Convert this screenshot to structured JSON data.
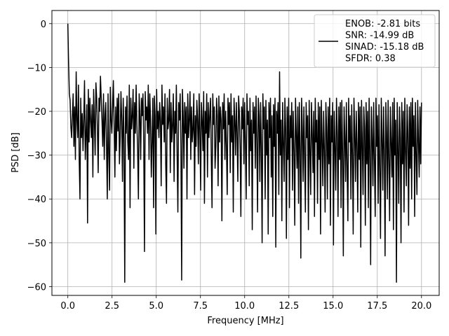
{
  "chart_data": {
    "type": "line",
    "title": "",
    "xlabel": "Frequency [MHz]",
    "ylabel": "PSD [dB]",
    "xlim": [
      -0.9,
      21.0
    ],
    "ylim": [
      -62.0,
      3.0
    ],
    "xticks": [
      0.0,
      2.5,
      5.0,
      7.5,
      10.0,
      12.5,
      15.0,
      17.5,
      20.0
    ],
    "xtick_labels": [
      "0.0",
      "2.5",
      "5.0",
      "7.5",
      "10.0",
      "12.5",
      "15.0",
      "17.5",
      "20.0"
    ],
    "yticks": [
      0,
      -10,
      -20,
      -30,
      -40,
      -50,
      -60
    ],
    "ytick_labels": [
      "0",
      "−10",
      "−20",
      "−30",
      "−40",
      "−50",
      "−60"
    ],
    "grid": true,
    "legend_position": "top-right",
    "series": [
      {
        "name": "ENOB: -2.81 bits\nSNR: -14.99 dB\nSINAD: -15.18 dB\nSFDR: 0.38",
        "color": "#000000",
        "x_range": [
          0.0,
          20.0
        ],
        "values": [
          0.0,
          -9.0,
          -16.0,
          -17.5,
          -23.5,
          -26.0,
          -21.0,
          -16.0,
          -28.0,
          -19.0,
          -31.0,
          -11.0,
          -22.0,
          -26.0,
          -14.0,
          -31.0,
          -40.0,
          -17.0,
          -26.0,
          -20.5,
          -29.0,
          -22.0,
          -13.0,
          -31.0,
          -25.0,
          -18.5,
          -45.5,
          -15.0,
          -27.0,
          -17.0,
          -22.0,
          -26.0,
          -18.5,
          -35.0,
          -15.0,
          -22.0,
          -30.0,
          -13.5,
          -17.0,
          -24.0,
          -34.0,
          -17.0,
          -20.0,
          -12.0,
          -17.0,
          -22.0,
          -28.0,
          -16.0,
          -31.0,
          -21.0,
          -18.0,
          -28.0,
          -40.0,
          -16.0,
          -30.0,
          -38.0,
          -14.5,
          -22.0,
          -25.0,
          -19.0,
          -13.0,
          -23.0,
          -35.0,
          -19.0,
          -29.0,
          -17.0,
          -24.5,
          -16.0,
          -32.0,
          -26.0,
          -15.5,
          -22.0,
          -36.0,
          -17.0,
          -26.0,
          -59.0,
          -19.0,
          -25.0,
          -16.5,
          -27.0,
          -31.0,
          -14.0,
          -42.0,
          -17.0,
          -24.0,
          -21.0,
          -15.0,
          -33.0,
          -18.0,
          -25.0,
          -14.0,
          -23.0,
          -29.0,
          -40.0,
          -16.0,
          -21.0,
          -31.0,
          -17.0,
          -21.0,
          -16.0,
          -27.0,
          -52.0,
          -15.5,
          -22.0,
          -19.0,
          -25.0,
          -14.0,
          -31.0,
          -16.0,
          -22.0,
          -35.0,
          -27.0,
          -17.0,
          -42.0,
          -16.5,
          -21.0,
          -48.0,
          -15.0,
          -24.0,
          -20.0,
          -26.0,
          -18.0,
          -22.0,
          -37.0,
          -14.0,
          -23.0,
          -19.0,
          -27.0,
          -16.0,
          -32.0,
          -41.0,
          -17.0,
          -24.0,
          -22.0,
          -15.0,
          -34.0,
          -18.0,
          -27.0,
          -23.0,
          -16.0,
          -36.0,
          -20.0,
          -25.0,
          -14.0,
          -30.0,
          -43.0,
          -18.0,
          -22.0,
          -16.0,
          -28.0,
          -58.5,
          -15.0,
          -21.0,
          -33.0,
          -18.0,
          -25.0,
          -19.0,
          -40.0,
          -16.0,
          -26.0,
          -22.0,
          -15.5,
          -31.0,
          -19.0,
          -27.0,
          -24.0,
          -16.0,
          -39.0,
          -21.0,
          -28.0,
          -17.5,
          -22.0,
          -32.0,
          -16.0,
          -25.0,
          -38.0,
          -18.0,
          -22.0,
          -29.0,
          -15.5,
          -41.0,
          -20.0,
          -25.0,
          -16.0,
          -35.0,
          -18.0,
          -26.0,
          -21.0,
          -17.0,
          -30.0,
          -42.0,
          -16.0,
          -23.0,
          -19.0,
          -33.0,
          -28.0,
          -17.0,
          -21.0,
          -37.0,
          -16.5,
          -27.0,
          -19.0,
          -22.0,
          -45.0,
          -18.0,
          -24.0,
          -16.0,
          -31.0,
          -20.0,
          -28.0,
          -39.0,
          -17.0,
          -23.0,
          -18.0,
          -34.0,
          -16.0,
          -27.0,
          -21.0,
          -43.0,
          -17.0,
          -22.0,
          -30.0,
          -18.0,
          -25.0,
          -36.0,
          -16.5,
          -20.0,
          -28.0,
          -44.0,
          -19.0,
          -24.0,
          -17.0,
          -32.0,
          -18.0,
          -27.0,
          -40.0,
          -16.0,
          -23.0,
          -20.0,
          -37.0,
          -17.0,
          -29.0,
          -22.0,
          -47.0,
          -18.0,
          -25.0,
          -19.0,
          -33.0,
          -16.5,
          -27.0,
          -43.0,
          -17.0,
          -21.0,
          -36.0,
          -18.0,
          -28.0,
          -50.0,
          -16.0,
          -24.0,
          -19.0,
          -40.0,
          -17.5,
          -30.0,
          -22.0,
          -48.0,
          -18.0,
          -26.0,
          -17.0,
          -35.0,
          -21.0,
          -44.0,
          -18.5,
          -28.0,
          -17.0,
          -51.0,
          -20.0,
          -25.0,
          -18.0,
          -39.0,
          -11.0,
          -30.0,
          -22.0,
          -45.0,
          -18.0,
          -27.0,
          -36.0,
          -17.0,
          -24.0,
          -49.0,
          -19.0,
          -31.0,
          -17.0,
          -42.0,
          -21.0,
          -26.0,
          -18.0,
          -38.0,
          -20.0,
          -29.0,
          -46.0,
          -17.0,
          -25.0,
          -33.0,
          -19.0,
          -41.0,
          -18.0,
          -28.0,
          -53.5,
          -17.0,
          -24.0,
          -36.0,
          -19.0,
          -30.0,
          -43.0,
          -18.0,
          -26.0,
          -21.0,
          -47.0,
          -17.5,
          -29.0,
          -39.0,
          -18.0,
          -25.0,
          -34.0,
          -20.0,
          -44.0,
          -17.0,
          -27.0,
          -22.0,
          -41.0,
          -18.0,
          -31.0,
          -19.0,
          -48.0,
          -17.5,
          -26.0,
          -37.0,
          -20.0,
          -29.0,
          -43.0,
          -18.0,
          -24.0,
          -40.0,
          -19.0,
          -32.0,
          -17.0,
          -46.0,
          -21.0,
          -27.0,
          -18.0,
          -50.5,
          -20.0,
          -28.0,
          -38.0,
          -17.0,
          -25.0,
          -44.0,
          -19.0,
          -31.0,
          -18.0,
          -42.0,
          -17.5,
          -29.0,
          -53.0,
          -19.0,
          -26.0,
          -36.0,
          -18.0,
          -33.0,
          -45.0,
          -17.0,
          -27.0,
          -21.0,
          -40.0,
          -18.5,
          -30.0,
          -48.0,
          -17.0,
          -25.0,
          -36.0,
          -20.0,
          -28.0,
          -43.0,
          -18.0,
          -31.0,
          -19.0,
          -51.0,
          -17.5,
          -27.0,
          -39.0,
          -19.0,
          -24.0,
          -46.0,
          -18.0,
          -32.0,
          -20.0,
          -42.0,
          -17.0,
          -29.0,
          -55.0,
          -19.0,
          -26.0,
          -37.0,
          -18.0,
          -31.0,
          -44.0,
          -17.0,
          -28.0,
          -21.0,
          -41.0,
          -18.5,
          -33.0,
          -49.0,
          -17.0,
          -26.0,
          -38.0,
          -19.0,
          -29.0,
          -53.0,
          -18.0,
          -25.0,
          -40.0,
          -17.5,
          -31.0,
          -45.0,
          -19.0,
          -27.0,
          -35.0,
          -18.0,
          -47.0,
          -17.0,
          -30.0,
          -22.0,
          -59.0,
          -18.0,
          -28.0,
          -41.0,
          -19.0,
          -26.0,
          -50.0,
          -18.0,
          -32.0,
          -20.0,
          -43.0,
          -17.0,
          -29.0,
          -37.0,
          -18.5,
          -25.0,
          -46.0,
          -19.0,
          -33.0,
          -18.0,
          -40.0,
          -17.0,
          -28.0,
          -21.0,
          -44.0,
          -18.0,
          -30.0,
          -39.0,
          -17.5,
          -27.0,
          -35.0,
          -19.0,
          -32.0,
          -18.0
        ]
      }
    ]
  }
}
